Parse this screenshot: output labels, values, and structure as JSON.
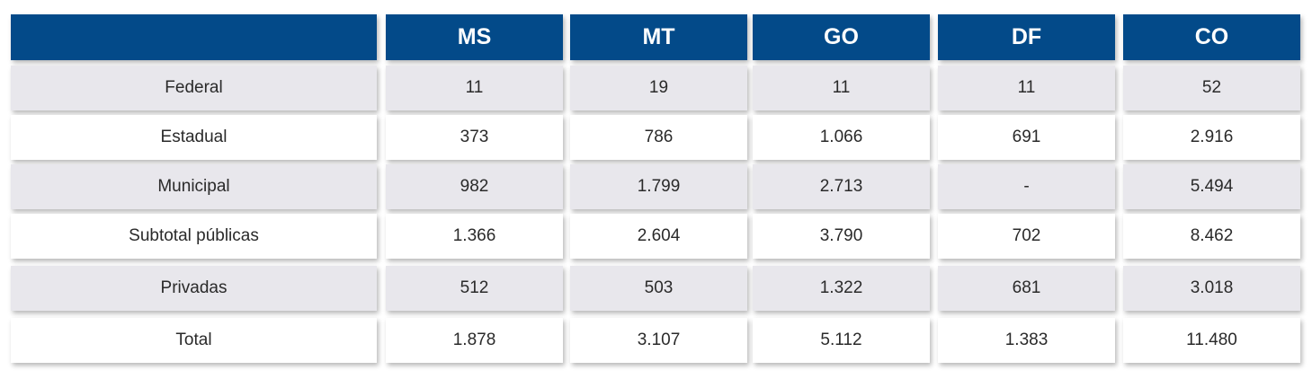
{
  "chart_data": {
    "type": "table",
    "columns": [
      "",
      "MS",
      "MT",
      "GO",
      "DF",
      "CO"
    ],
    "rows": [
      {
        "label": "Federal",
        "values": [
          "11",
          "19",
          "11",
          "11",
          "52"
        ]
      },
      {
        "label": "Estadual",
        "values": [
          "373",
          "786",
          "1.066",
          "691",
          "2.916"
        ]
      },
      {
        "label": "Municipal",
        "values": [
          "982",
          "1.799",
          "2.713",
          "-",
          "5.494"
        ]
      },
      {
        "label": "Subtotal públicas",
        "values": [
          "1.366",
          "2.604",
          "3.790",
          "702",
          "8.462"
        ]
      },
      {
        "label": "Privadas",
        "values": [
          "512",
          "503",
          "1.322",
          "681",
          "3.018"
        ]
      },
      {
        "label": "Total",
        "values": [
          "1.878",
          "3.107",
          "5.112",
          "1.383",
          "11.480"
        ]
      }
    ]
  },
  "colors": {
    "header_bg": "#034a89",
    "header_text": "#ffffff",
    "shaded_row": "#e8e7ec",
    "plain_row": "#ffffff",
    "body_text": "#2a2a2a"
  }
}
